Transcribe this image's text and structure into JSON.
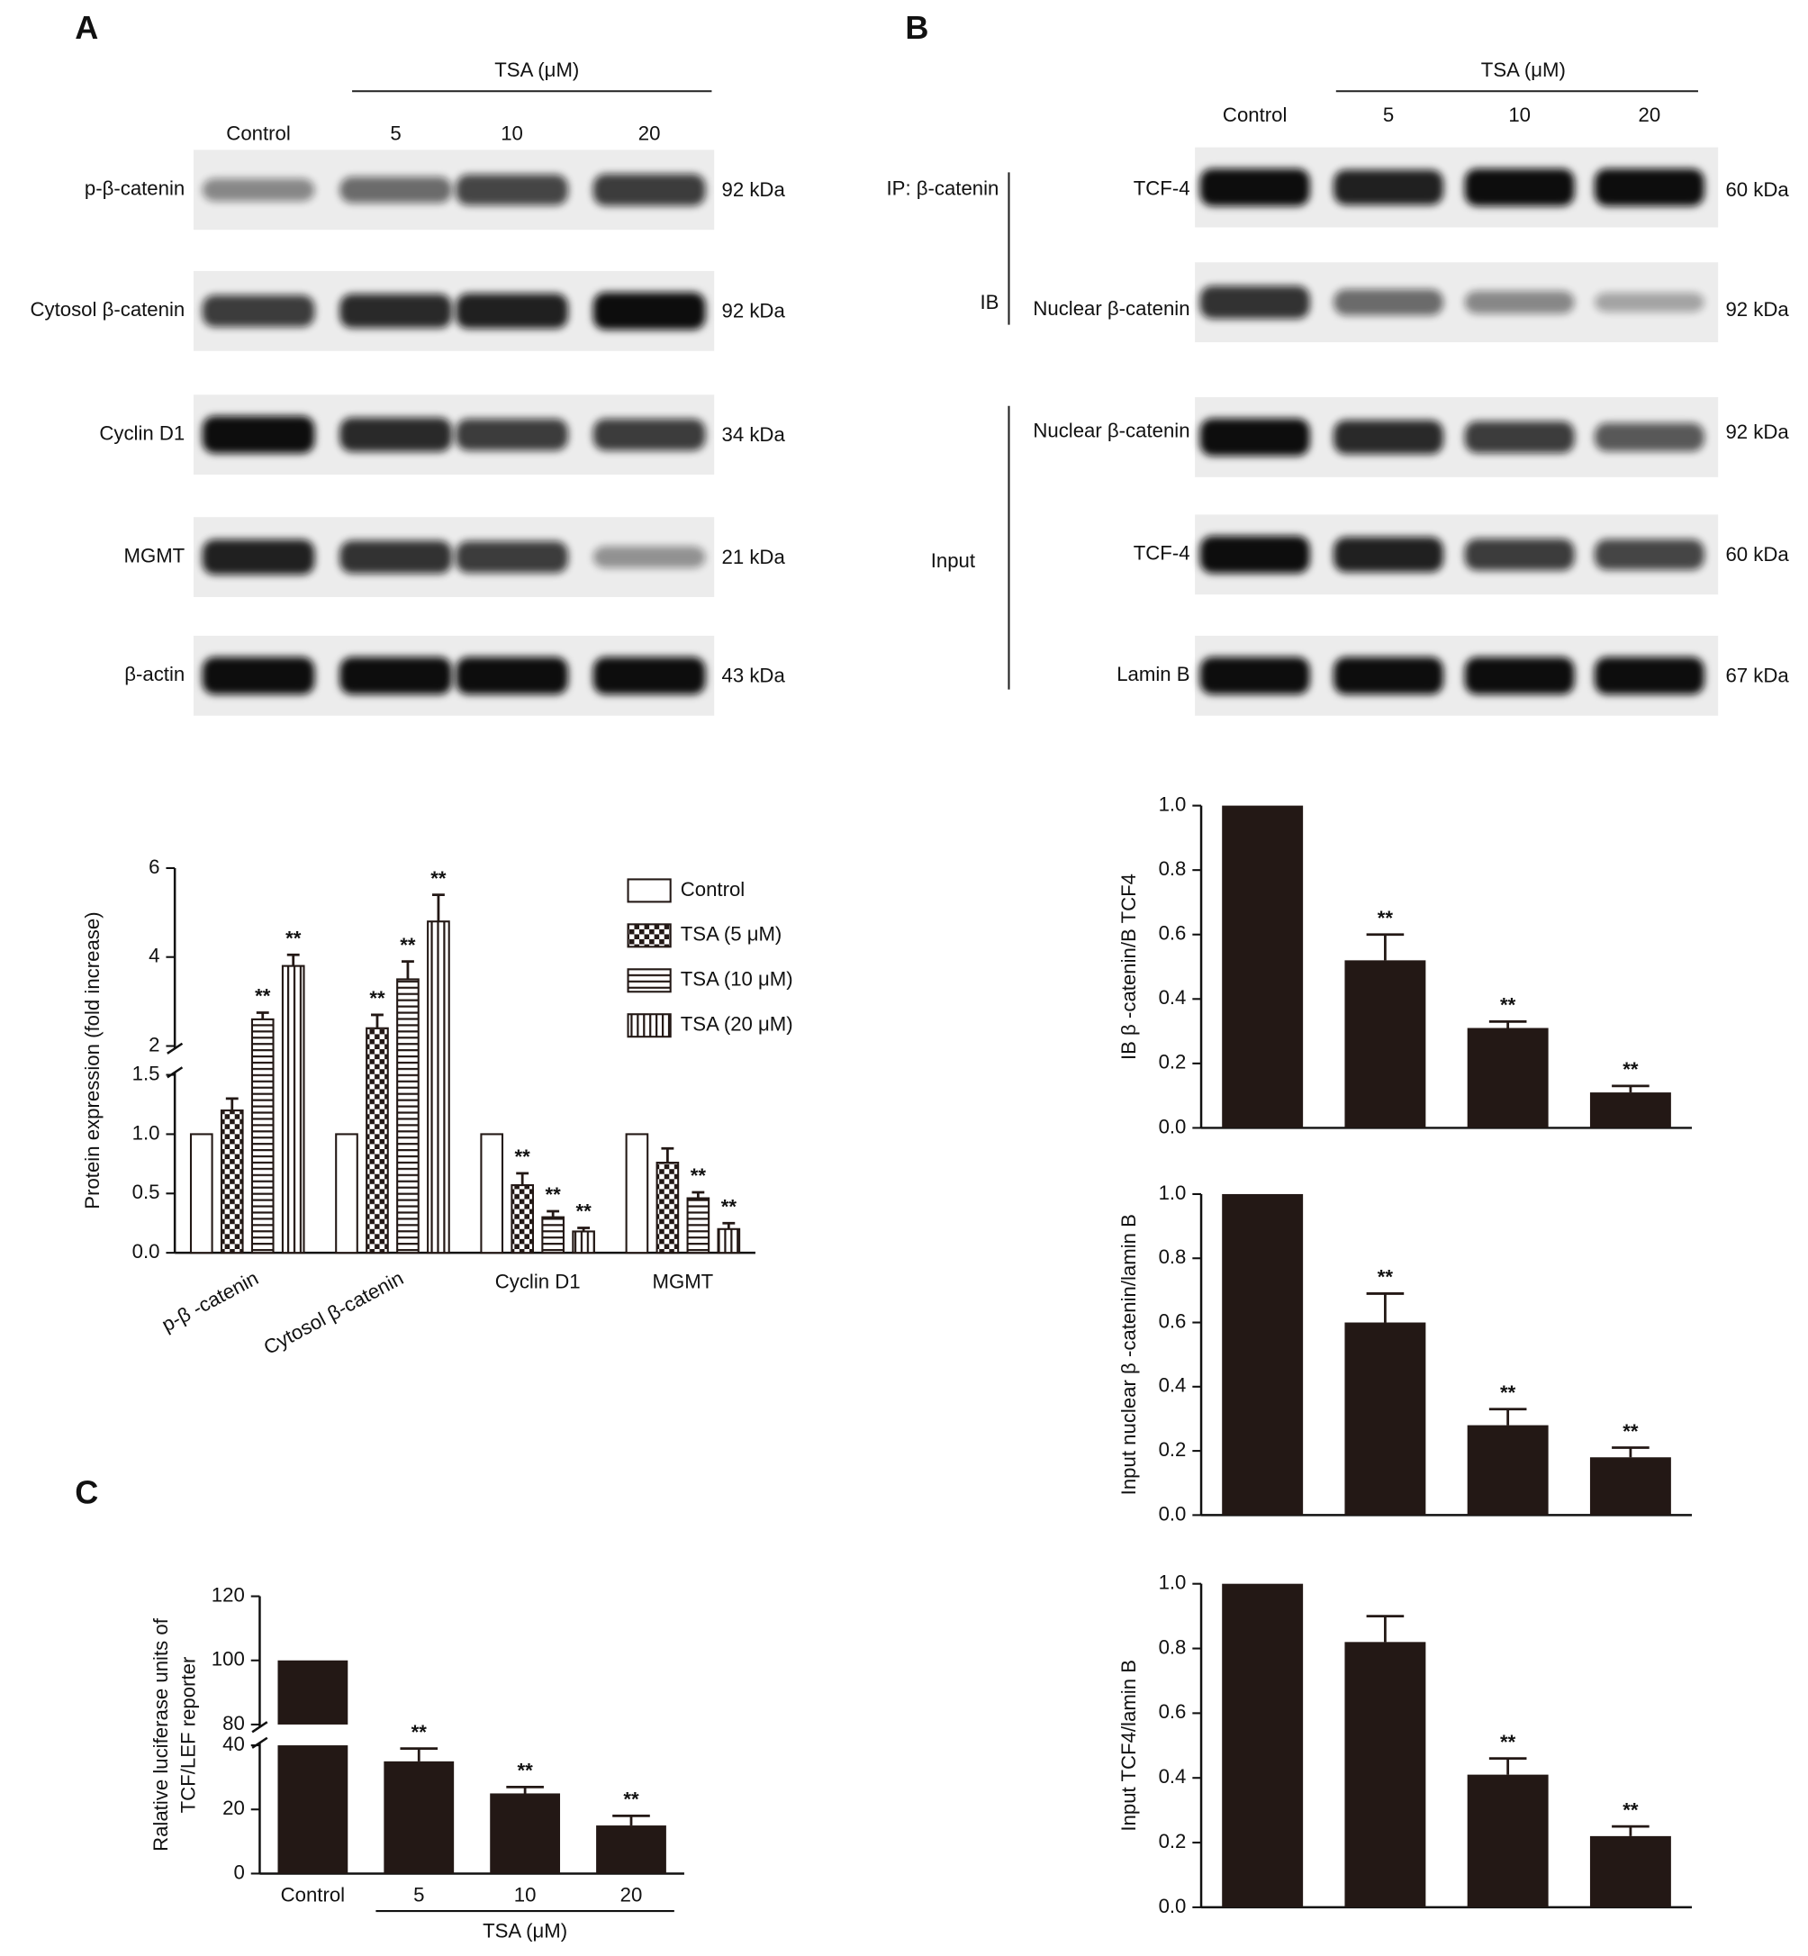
{
  "panel_labels": {
    "a": "A",
    "b": "B",
    "c": "C"
  },
  "blot_a": {
    "group_label": "TSA (μM)",
    "lanes": [
      "Control",
      "5",
      "10",
      "20"
    ],
    "rows": [
      {
        "protein": "p-β-catenin",
        "size": "92 kDa"
      },
      {
        "protein": "Cytosol β-catenin",
        "size": "92 kDa"
      },
      {
        "protein": "Cyclin D1",
        "size": "34 kDa"
      },
      {
        "protein": "MGMT",
        "size": "21 kDa"
      },
      {
        "protein": "β-actin",
        "size": "43 kDa"
      }
    ]
  },
  "blot_b": {
    "group_label": "TSA (μM)",
    "lanes": [
      "Control",
      "5",
      "10",
      "20"
    ],
    "ip_label": "IP: β-catenin",
    "ib_label": "IB",
    "input_label": "Input",
    "rows": [
      {
        "protein": "TCF-4",
        "size": "60 kDa"
      },
      {
        "protein": "Nuclear β-catenin",
        "size": "92 kDa"
      },
      {
        "protein": "Nuclear β-catenin",
        "size": "92 kDa"
      },
      {
        "protein": "TCF-4",
        "size": "60 kDa"
      },
      {
        "protein": "Lamin B",
        "size": "67 kDa"
      }
    ]
  },
  "chart_data": [
    {
      "type": "bar",
      "ylabel": "Protein expression (fold increase)",
      "categories": [
        "p-β -catenin",
        "Cytosol β-catenin",
        "Cyclin D1",
        "MGMT"
      ],
      "series": [
        {
          "name": "Control",
          "color": "#231815",
          "fill": "white",
          "values": [
            1.0,
            1.0,
            1.0,
            1.0
          ],
          "errors": [
            null,
            null,
            null,
            null
          ],
          "significance": [
            null,
            null,
            null,
            null
          ]
        },
        {
          "name": "TSA (5 μM)",
          "color": "#231815",
          "fill": "checker",
          "values": [
            1.2,
            2.4,
            0.57,
            0.76
          ],
          "errors": [
            0.1,
            0.3,
            0.1,
            0.12
          ],
          "significance": [
            null,
            "**",
            "**",
            null
          ]
        },
        {
          "name": "TSA (10 μM)",
          "color": "#231815",
          "fill": "horizontal",
          "values": [
            2.6,
            3.5,
            0.3,
            0.46
          ],
          "errors": [
            0.15,
            0.4,
            0.05,
            0.05
          ],
          "significance": [
            "**",
            "**",
            "**",
            "**"
          ]
        },
        {
          "name": "TSA (20 μM)",
          "color": "#231815",
          "fill": "vertical",
          "values": [
            3.8,
            4.8,
            0.18,
            0.2
          ],
          "errors": [
            0.25,
            0.6,
            0.03,
            0.05
          ],
          "significance": [
            "**",
            "**",
            "**",
            "**"
          ]
        }
      ],
      "ylim": [
        0,
        6
      ],
      "ybreak": [
        1.5,
        2
      ],
      "yticks": [
        {
          "value": 0,
          "label": "0.0"
        },
        {
          "value": 0.5,
          "label": "0.5"
        },
        {
          "value": 1,
          "label": "1.0"
        },
        {
          "value": 1.5,
          "label": "1.5"
        },
        2,
        4,
        6
      ],
      "legend": "upper right"
    },
    {
      "type": "bar",
      "ylabel": "IB β -catenin/B TCF4",
      "categories": [
        null,
        null,
        null,
        null
      ],
      "color": "#231815",
      "values": [
        1.0,
        0.52,
        0.31,
        0.11
      ],
      "errors": [
        null,
        0.08,
        0.02,
        0.02
      ],
      "significance": [
        null,
        "**",
        "**",
        "**"
      ],
      "ylim": [
        0,
        1
      ],
      "yticks": [
        {
          "value": 0,
          "label": "0.0"
        },
        {
          "value": 0.2,
          "label": "0.2"
        },
        {
          "value": 0.4,
          "label": "0.4"
        },
        {
          "value": 0.6,
          "label": "0.6"
        },
        {
          "value": 0.8,
          "label": "0.8"
        },
        {
          "value": 1,
          "label": "1.0"
        }
      ]
    },
    {
      "type": "bar",
      "ylabel": "Input nuclear β -catenin/lamin B",
      "categories": [
        null,
        null,
        null,
        null
      ],
      "color": "#231815",
      "values": [
        1.0,
        0.6,
        0.28,
        0.18
      ],
      "errors": [
        null,
        0.09,
        0.05,
        0.03
      ],
      "significance": [
        null,
        "**",
        "**",
        "**"
      ],
      "ylim": [
        0,
        1
      ],
      "yticks": [
        {
          "value": 0,
          "label": "0.0"
        },
        {
          "value": 0.2,
          "label": "0.2"
        },
        {
          "value": 0.4,
          "label": "0.4"
        },
        {
          "value": 0.6,
          "label": "0.6"
        },
        {
          "value": 0.8,
          "label": "0.8"
        },
        {
          "value": 1,
          "label": "1.0"
        }
      ]
    },
    {
      "type": "bar",
      "ylabel": "Input TCF4/lamin B",
      "categories": [
        null,
        null,
        null,
        null
      ],
      "color": "#231815",
      "values": [
        1.0,
        0.82,
        0.41,
        0.22
      ],
      "errors": [
        null,
        0.08,
        0.05,
        0.03
      ],
      "significance": [
        null,
        null,
        "**",
        "**"
      ],
      "ylim": [
        0,
        1
      ],
      "yticks": [
        {
          "value": 0,
          "label": "0.0"
        },
        {
          "value": 0.2,
          "label": "0.2"
        },
        {
          "value": 0.4,
          "label": "0.4"
        },
        {
          "value": 0.6,
          "label": "0.6"
        },
        {
          "value": 0.8,
          "label": "0.8"
        },
        {
          "value": 1,
          "label": "1.0"
        }
      ]
    },
    {
      "type": "bar",
      "ylabel": [
        "Ralative luciferase units of",
        "TCF/LEF reporter"
      ],
      "categories": [
        "Control",
        "5",
        "10",
        "20"
      ],
      "group_label": "TSA (μM)",
      "color": "#231815",
      "values": [
        100,
        35,
        25,
        15
      ],
      "errors": [
        null,
        4,
        2,
        3
      ],
      "significance": [
        null,
        "**",
        "**",
        "**"
      ],
      "ylim": [
        0,
        120
      ],
      "ybreak": [
        40,
        80
      ],
      "yticks": [
        0,
        20,
        40,
        80,
        100,
        120
      ],
      "split_bars": true
    }
  ]
}
